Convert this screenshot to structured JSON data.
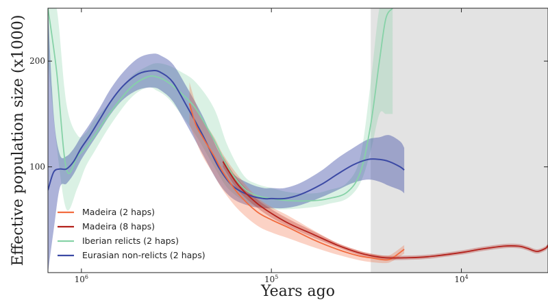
{
  "chart_data": {
    "type": "line",
    "xscale": "log",
    "xaxis_reversed": true,
    "xlabel": "Years ago",
    "ylabel": "Effective population size (x1000)",
    "xlim": [
      1500000,
      3500
    ],
    "ylim": [
      0,
      250
    ],
    "xticks": [
      {
        "value": 1000000,
        "base": "10",
        "exp": "6"
      },
      {
        "value": 100000,
        "base": "10",
        "exp": "5"
      },
      {
        "value": 10000,
        "base": "10",
        "exp": "4"
      }
    ],
    "yticks": [
      {
        "value": 100,
        "label": "100"
      },
      {
        "value": 200,
        "label": "200"
      }
    ],
    "shaded_region": {
      "from": 30000,
      "to": 3500,
      "color": "#e3e3e3"
    },
    "legend_position": "bottom-left",
    "legend": [
      {
        "label": "Madeira (2 haps)",
        "color": "#f26b3e"
      },
      {
        "label": "Madeira (8 haps)",
        "color": "#b3201a"
      },
      {
        "label": "Iberian relicts (2 haps)",
        "color": "#86d2a7"
      },
      {
        "label": "Eurasian non-relicts (2 haps)",
        "color": "#3b49a4"
      }
    ],
    "series": [
      {
        "name": "Madeira (2 haps)",
        "color": "#f26b3e",
        "x": [
          270000,
          250000,
          230000,
          200000,
          180000,
          150000,
          120000,
          100000,
          80000,
          60000,
          45000,
          35000,
          30000,
          25000,
          23000,
          20000
        ],
        "y": [
          160,
          140,
          128,
          110,
          95,
          75,
          58,
          50,
          42,
          31,
          22,
          16,
          14,
          12,
          14,
          22
        ],
        "lower": [
          140,
          125,
          110,
          92,
          78,
          60,
          45,
          38,
          32,
          24,
          17,
          12,
          10,
          9,
          11,
          18
        ],
        "upper": [
          180,
          160,
          145,
          128,
          112,
          92,
          72,
          62,
          53,
          40,
          28,
          21,
          18,
          16,
          18,
          26
        ]
      },
      {
        "name": "Madeira (8 haps)",
        "color": "#b3201a",
        "x": [
          180000,
          150000,
          120000,
          100000,
          80000,
          60000,
          45000,
          35000,
          30000,
          25000,
          20000,
          15000,
          10000,
          8000,
          6000,
          5000,
          4500,
          4000,
          3600,
          3500
        ],
        "y": [
          105,
          83,
          66,
          56,
          46,
          36,
          26,
          19,
          16,
          14,
          14,
          15,
          19,
          22,
          25,
          25,
          23,
          20,
          23,
          26
        ],
        "lower": [
          100,
          78,
          62,
          52,
          43,
          33,
          24,
          17,
          14,
          12,
          12,
          13,
          17,
          20,
          23,
          23,
          21,
          18,
          21,
          24
        ],
        "upper": [
          110,
          88,
          70,
          60,
          50,
          39,
          28,
          21,
          18,
          16,
          16,
          17,
          21,
          24,
          27,
          27,
          25,
          22,
          25,
          28
        ]
      },
      {
        "name": "Iberian relicts (2 haps)",
        "color": "#86d2a7",
        "x": [
          1500000,
          1350000,
          1200000,
          1050000,
          950000,
          850000,
          700000,
          550000,
          450000,
          400000,
          350000,
          300000,
          250000,
          200000,
          170000,
          140000,
          120000,
          100000,
          80000,
          60000,
          50000,
          40000,
          34000,
          30000,
          27000,
          25000,
          23000
        ],
        "y": [
          250,
          190,
          98,
          110,
          118,
          130,
          152,
          175,
          185,
          185,
          180,
          170,
          155,
          125,
          100,
          80,
          73,
          70,
          68,
          68,
          70,
          76,
          95,
          140,
          200,
          240,
          250
        ],
        "lower": [
          200,
          120,
          60,
          80,
          100,
          115,
          140,
          165,
          175,
          172,
          165,
          150,
          130,
          100,
          80,
          68,
          63,
          60,
          60,
          62,
          65,
          70,
          85,
          115,
          150,
          150,
          150
        ],
        "upper": [
          250,
          250,
          160,
          130,
          132,
          145,
          162,
          185,
          195,
          198,
          196,
          190,
          180,
          155,
          120,
          92,
          84,
          80,
          76,
          75,
          78,
          85,
          110,
          180,
          250,
          250,
          250
        ]
      },
      {
        "name": "Eurasian non-relicts (2 haps)",
        "color": "#3b49a4",
        "x": [
          1500000,
          1400000,
          1300000,
          1200000,
          1100000,
          1000000,
          900000,
          800000,
          700000,
          600000,
          500000,
          420000,
          380000,
          330000,
          280000,
          230000,
          190000,
          160000,
          130000,
          110000,
          100000,
          85000,
          70000,
          55000,
          45000,
          37000,
          31000,
          27000,
          24000,
          21000,
          20000
        ],
        "y": [
          78,
          95,
          98,
          98,
          105,
          118,
          130,
          145,
          162,
          177,
          188,
          191,
          189,
          180,
          158,
          130,
          100,
          82,
          73,
          70,
          70,
          70,
          74,
          83,
          93,
          102,
          107,
          107,
          105,
          100,
          97
        ],
        "lower": [
          0,
          40,
          80,
          84,
          93,
          107,
          120,
          134,
          150,
          164,
          173,
          175,
          172,
          162,
          140,
          112,
          85,
          70,
          63,
          61,
          61,
          61,
          64,
          71,
          78,
          85,
          88,
          86,
          82,
          78,
          75
        ],
        "upper": [
          250,
          150,
          112,
          110,
          117,
          129,
          141,
          156,
          174,
          190,
          203,
          207,
          205,
          197,
          176,
          148,
          115,
          94,
          84,
          80,
          80,
          80,
          85,
          96,
          108,
          118,
          126,
          128,
          130,
          124,
          118
        ]
      }
    ]
  }
}
